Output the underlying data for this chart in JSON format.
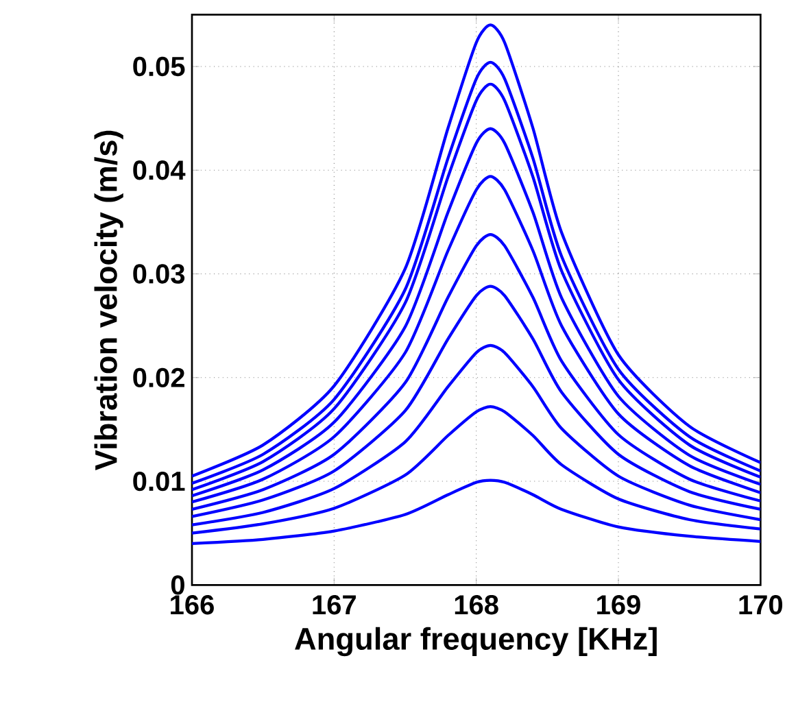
{
  "chart_data": {
    "type": "line",
    "xlabel": "Angular frequency [KHz]",
    "ylabel": "Vibration velocity (m/s)",
    "x": [
      166,
      166.5,
      167,
      167.5,
      167.8,
      168,
      168.1,
      168.2,
      168.4,
      168.6,
      169,
      169.5,
      170
    ],
    "xlim": [
      166,
      170
    ],
    "ylim": [
      0,
      0.055
    ],
    "xticks": [
      166,
      167,
      168,
      169,
      170
    ],
    "yticks": [
      0,
      0.01,
      0.02,
      0.03,
      0.04,
      0.05
    ],
    "grid": true,
    "line_style": "solid",
    "marker": "none",
    "series": [
      {
        "color": "#0000ff",
        "values": [
          0.0105,
          0.0135,
          0.0192,
          0.0305,
          0.044,
          0.0523,
          0.054,
          0.0523,
          0.044,
          0.034,
          0.0222,
          0.0153,
          0.0118
        ]
      },
      {
        "color": "#0000ff",
        "values": [
          0.0098,
          0.0126,
          0.0179,
          0.0285,
          0.0411,
          0.0488,
          0.0504,
          0.0488,
          0.0411,
          0.0317,
          0.0208,
          0.0143,
          0.011
        ]
      },
      {
        "color": "#0000ff",
        "values": [
          0.0092,
          0.0119,
          0.017,
          0.0272,
          0.0393,
          0.0467,
          0.0483,
          0.0467,
          0.0393,
          0.0303,
          0.0198,
          0.0135,
          0.0104
        ]
      },
      {
        "color": "#0000ff",
        "values": [
          0.0086,
          0.0111,
          0.0157,
          0.0249,
          0.0359,
          0.0426,
          0.044,
          0.0426,
          0.0359,
          0.0277,
          0.0182,
          0.0125,
          0.0097
        ]
      },
      {
        "color": "#0000ff",
        "values": [
          0.008,
          0.0102,
          0.0143,
          0.0224,
          0.0322,
          0.0381,
          0.0394,
          0.0381,
          0.0322,
          0.025,
          0.0165,
          0.0115,
          0.0089
        ]
      },
      {
        "color": "#0000ff",
        "values": [
          0.0073,
          0.0092,
          0.0126,
          0.0195,
          0.0277,
          0.0327,
          0.0338,
          0.0327,
          0.0277,
          0.0216,
          0.0145,
          0.0102,
          0.0081
        ]
      },
      {
        "color": "#0000ff",
        "values": [
          0.0066,
          0.0082,
          0.011,
          0.0168,
          0.0237,
          0.0279,
          0.0288,
          0.0279,
          0.0237,
          0.0186,
          0.0126,
          0.009,
          0.0073
        ]
      },
      {
        "color": "#0000ff",
        "values": [
          0.0058,
          0.007,
          0.0093,
          0.0138,
          0.0191,
          0.0224,
          0.0231,
          0.0224,
          0.0191,
          0.0151,
          0.0105,
          0.0077,
          0.0063
        ]
      },
      {
        "color": "#0000ff",
        "values": [
          0.005,
          0.0059,
          0.0074,
          0.0106,
          0.0144,
          0.0167,
          0.0172,
          0.0167,
          0.0144,
          0.0116,
          0.0083,
          0.0063,
          0.0054
        ]
      },
      {
        "color": "#0000ff",
        "values": [
          0.004,
          0.0044,
          0.0052,
          0.0068,
          0.0087,
          0.0099,
          0.0101,
          0.0099,
          0.0087,
          0.0073,
          0.0056,
          0.0047,
          0.0042
        ]
      }
    ]
  }
}
